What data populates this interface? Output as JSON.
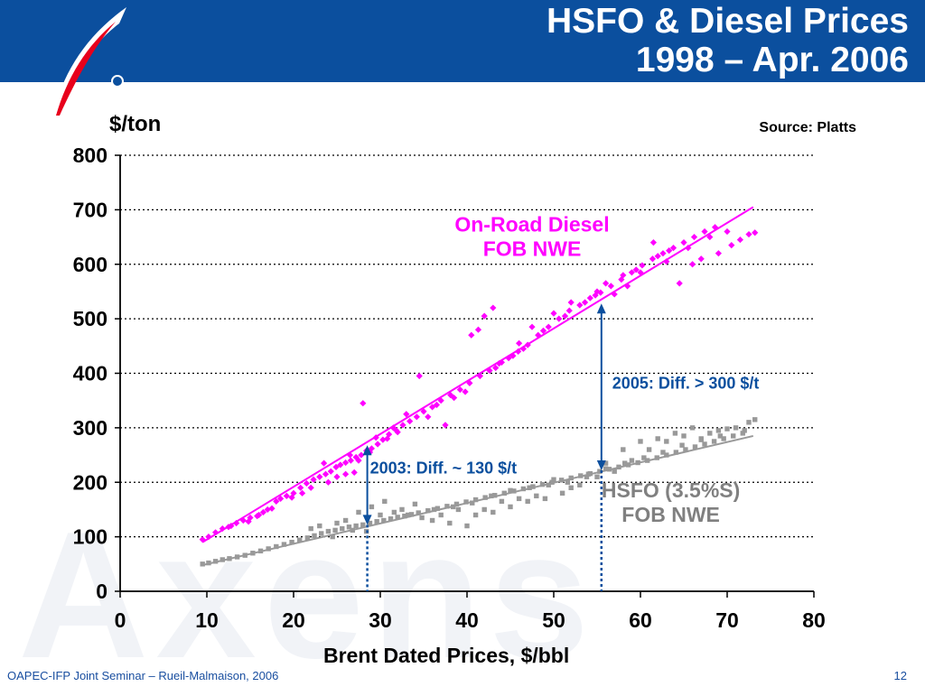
{
  "title": {
    "line1": "HSFO & Diesel Prices",
    "line2": "1998 – Apr. 2006"
  },
  "colors": {
    "header": "#0b4f9e",
    "diesel": "#ff00ff",
    "hsfo": "#999999",
    "annotation": "#0b4f9e",
    "footer": "#1a4fa0"
  },
  "watermark": "Axens",
  "footer": {
    "left": "OAPEC-IFP Joint Seminar – Rueil-Malmaison, 2006",
    "page": "12"
  },
  "chart_data": {
    "type": "scatter",
    "ylabel": "$/ton",
    "xlabel": "Brent Dated Prices, $/bbl",
    "source": "Source: Platts",
    "xlim": [
      0,
      80
    ],
    "ylim": [
      0,
      800
    ],
    "xticks": [
      0,
      10,
      20,
      30,
      40,
      50,
      60,
      70,
      80
    ],
    "yticks": [
      0,
      100,
      200,
      300,
      400,
      500,
      600,
      700,
      800
    ],
    "grid": "horizontal-dotted",
    "series": [
      {
        "name": "On-Road Diesel FOB NWE",
        "color": "#ff00ff",
        "marker": "diamond",
        "points": [
          [
            9.5,
            95
          ],
          [
            10.2,
            100
          ],
          [
            11,
            108
          ],
          [
            11.8,
            115
          ],
          [
            12.5,
            118
          ],
          [
            13.4,
            125
          ],
          [
            14.2,
            130
          ],
          [
            15,
            135
          ],
          [
            15.8,
            138
          ],
          [
            16.5,
            145
          ],
          [
            17.5,
            152
          ],
          [
            18.5,
            170
          ],
          [
            19.2,
            175
          ],
          [
            20,
            180
          ],
          [
            20.8,
            190
          ],
          [
            21.5,
            198
          ],
          [
            22.3,
            205
          ],
          [
            23,
            210
          ],
          [
            23.7,
            215
          ],
          [
            24.3,
            220
          ],
          [
            24.9,
            228
          ],
          [
            25.4,
            232
          ],
          [
            26,
            236
          ],
          [
            26.6,
            240
          ],
          [
            27.2,
            246
          ],
          [
            27.8,
            250
          ],
          [
            28.4,
            258
          ],
          [
            29,
            262
          ],
          [
            29.7,
            270
          ],
          [
            30.3,
            278
          ],
          [
            31,
            288
          ],
          [
            31.8,
            296
          ],
          [
            32.6,
            305
          ],
          [
            33.4,
            312
          ],
          [
            34.2,
            320
          ],
          [
            35,
            330
          ],
          [
            36,
            338
          ],
          [
            37,
            350
          ],
          [
            38.1,
            360
          ],
          [
            39.2,
            370
          ],
          [
            40.3,
            382
          ],
          [
            41.5,
            395
          ],
          [
            42.6,
            405
          ],
          [
            43.7,
            418
          ],
          [
            44.8,
            428
          ],
          [
            45.9,
            440
          ],
          [
            47,
            452
          ],
          [
            48.2,
            470
          ],
          [
            49.4,
            485
          ],
          [
            50.6,
            500
          ],
          [
            51.8,
            515
          ],
          [
            53,
            525
          ],
          [
            54.2,
            538
          ],
          [
            55.4,
            548
          ],
          [
            56.6,
            560
          ],
          [
            57.8,
            572
          ],
          [
            59,
            585
          ],
          [
            60.2,
            598
          ],
          [
            61.4,
            610
          ],
          [
            62.6,
            620
          ],
          [
            63.8,
            630
          ],
          [
            65,
            640
          ],
          [
            66.2,
            650
          ],
          [
            67.4,
            660
          ],
          [
            68.6,
            668
          ],
          [
            72.5,
            655
          ],
          [
            73.2,
            658
          ],
          [
            28,
            345
          ],
          [
            34.5,
            395
          ],
          [
            37.5,
            305
          ],
          [
            40.5,
            470
          ],
          [
            41.3,
            480
          ],
          [
            42,
            505
          ],
          [
            43,
            520
          ],
          [
            46,
            455
          ],
          [
            47.5,
            485
          ],
          [
            50,
            510
          ],
          [
            52,
            530
          ],
          [
            55,
            550
          ],
          [
            57,
            545
          ],
          [
            58.5,
            560
          ],
          [
            60,
            585
          ],
          [
            61.5,
            640
          ],
          [
            63,
            605
          ],
          [
            64.5,
            565
          ],
          [
            66,
            600
          ],
          [
            67,
            610
          ],
          [
            69,
            620
          ],
          [
            70.5,
            635
          ],
          [
            71.5,
            645
          ],
          [
            18,
            165
          ],
          [
            21,
            180
          ],
          [
            22,
            190
          ],
          [
            24,
            200
          ],
          [
            25,
            210
          ],
          [
            26,
            215
          ],
          [
            27,
            218
          ],
          [
            23.5,
            235
          ],
          [
            26.5,
            250
          ],
          [
            29.5,
            282
          ],
          [
            31.5,
            300
          ],
          [
            33,
            325
          ],
          [
            35.5,
            320
          ],
          [
            38.5,
            355
          ],
          [
            39.8,
            366
          ],
          [
            44,
            420
          ],
          [
            45.3,
            432
          ],
          [
            48.8,
            478
          ],
          [
            53.6,
            530
          ],
          [
            56,
            565
          ],
          [
            58,
            580
          ],
          [
            62,
            615
          ],
          [
            65.5,
            630
          ],
          [
            68,
            650
          ],
          [
            12.8,
            120
          ],
          [
            14.8,
            128
          ],
          [
            16,
            140
          ],
          [
            17,
            150
          ],
          [
            19.8,
            172
          ],
          [
            27.5,
            240
          ],
          [
            28.8,
            255
          ],
          [
            30.8,
            280
          ],
          [
            32,
            292
          ],
          [
            36.5,
            342
          ],
          [
            43.3,
            410
          ],
          [
            46.5,
            445
          ],
          [
            51.3,
            505
          ],
          [
            54.8,
            543
          ],
          [
            59.5,
            590
          ],
          [
            63.3,
            625
          ],
          [
            70,
            660
          ]
        ]
      },
      {
        "name": "HSFO (3.5%S) FOB NWE",
        "color": "#999999",
        "marker": "square",
        "points": [
          [
            9.5,
            50
          ],
          [
            10.2,
            52
          ],
          [
            11,
            55
          ],
          [
            11.8,
            58
          ],
          [
            12.6,
            60
          ],
          [
            13.5,
            63
          ],
          [
            14.4,
            66
          ],
          [
            15.3,
            70
          ],
          [
            16.2,
            74
          ],
          [
            17.1,
            78
          ],
          [
            18,
            82
          ],
          [
            18.9,
            86
          ],
          [
            19.8,
            90
          ],
          [
            20.7,
            94
          ],
          [
            21.6,
            98
          ],
          [
            22.4,
            102
          ],
          [
            23.2,
            106
          ],
          [
            24,
            110
          ],
          [
            24.8,
            112
          ],
          [
            25.6,
            115
          ],
          [
            26.4,
            118
          ],
          [
            27.2,
            120
          ],
          [
            28,
            122
          ],
          [
            28.8,
            125
          ],
          [
            29.6,
            128
          ],
          [
            30.4,
            130
          ],
          [
            31.2,
            133
          ],
          [
            32,
            136
          ],
          [
            32.8,
            138
          ],
          [
            33.6,
            141
          ],
          [
            34.4,
            144
          ],
          [
            35.5,
            148
          ],
          [
            36.6,
            152
          ],
          [
            37.7,
            156
          ],
          [
            38.8,
            160
          ],
          [
            39.9,
            164
          ],
          [
            41,
            168
          ],
          [
            42.1,
            172
          ],
          [
            43.2,
            176
          ],
          [
            44.3,
            180
          ],
          [
            45.4,
            184
          ],
          [
            46.5,
            188
          ],
          [
            47.6,
            192
          ],
          [
            48.7,
            196
          ],
          [
            49.8,
            200
          ],
          [
            50.9,
            204
          ],
          [
            52,
            208
          ],
          [
            53.1,
            212
          ],
          [
            54.2,
            216
          ],
          [
            55.3,
            220
          ],
          [
            56.4,
            224
          ],
          [
            57.5,
            228
          ],
          [
            58.6,
            232
          ],
          [
            59.7,
            236
          ],
          [
            60.8,
            240
          ],
          [
            61.9,
            245
          ],
          [
            63,
            250
          ],
          [
            64.1,
            255
          ],
          [
            65.2,
            260
          ],
          [
            66.3,
            265
          ],
          [
            67.4,
            270
          ],
          [
            68.5,
            275
          ],
          [
            69.6,
            280
          ],
          [
            70.7,
            285
          ],
          [
            71.8,
            290
          ],
          [
            72.5,
            310
          ],
          [
            73.2,
            315
          ],
          [
            24.5,
            100
          ],
          [
            26,
            130
          ],
          [
            27.5,
            145
          ],
          [
            29,
            155
          ],
          [
            30.5,
            165
          ],
          [
            32.5,
            150
          ],
          [
            34,
            160
          ],
          [
            36,
            130
          ],
          [
            38,
            125
          ],
          [
            40,
            120
          ],
          [
            42,
            150
          ],
          [
            44,
            165
          ],
          [
            46,
            170
          ],
          [
            48,
            175
          ],
          [
            50,
            205
          ],
          [
            52,
            190
          ],
          [
            54,
            215
          ],
          [
            56,
            235
          ],
          [
            58,
            260
          ],
          [
            60,
            275
          ],
          [
            62,
            280
          ],
          [
            64,
            290
          ],
          [
            66,
            300
          ],
          [
            68,
            290
          ],
          [
            70,
            298
          ],
          [
            71,
            300
          ],
          [
            72,
            295
          ],
          [
            37,
            140
          ],
          [
            39,
            150
          ],
          [
            41,
            140
          ],
          [
            43,
            145
          ],
          [
            45,
            155
          ],
          [
            47,
            165
          ],
          [
            49,
            170
          ],
          [
            51,
            180
          ],
          [
            53,
            195
          ],
          [
            55,
            210
          ],
          [
            57,
            220
          ],
          [
            59,
            240
          ],
          [
            61,
            260
          ],
          [
            63,
            275
          ],
          [
            65,
            285
          ],
          [
            67,
            280
          ],
          [
            69,
            295
          ],
          [
            22,
            115
          ],
          [
            23,
            120
          ],
          [
            25,
            125
          ],
          [
            26.8,
            112
          ],
          [
            28.4,
            110
          ],
          [
            30,
            140
          ],
          [
            31.6,
            145
          ],
          [
            33.2,
            140
          ],
          [
            34.8,
            135
          ],
          [
            36.2,
            150
          ],
          [
            38.4,
            155
          ],
          [
            40.6,
            162
          ],
          [
            42.8,
            175
          ],
          [
            45,
            185
          ],
          [
            47.2,
            190
          ],
          [
            49.4,
            195
          ],
          [
            51.6,
            200
          ],
          [
            53.8,
            210
          ],
          [
            56,
            225
          ],
          [
            58.2,
            235
          ],
          [
            60.4,
            245
          ],
          [
            62.6,
            255
          ],
          [
            64.8,
            268
          ],
          [
            67,
            278
          ],
          [
            69.2,
            285
          ]
        ]
      }
    ],
    "trendlines": [
      {
        "series": "On-Road Diesel FOB NWE",
        "color": "#ff00ff",
        "from": [
          9.5,
          90
        ],
        "to": [
          73,
          705
        ]
      },
      {
        "series": "HSFO (3.5%S) FOB NWE",
        "color": "#999999",
        "from": [
          9.5,
          48
        ],
        "to": [
          73,
          285
        ]
      }
    ],
    "annotations": [
      {
        "text": "2003: Diff. ~ 130 $/t",
        "x": 28.5,
        "y_low": 122,
        "y_high": 268,
        "color": "#0b4f9e"
      },
      {
        "text": "2005: Diff. > 300 $/t",
        "x": 55.5,
        "y_low": 222,
        "y_high": 528,
        "color": "#0b4f9e"
      }
    ],
    "series_labels": [
      {
        "lines": [
          "On-Road Diesel",
          "FOB NWE"
        ],
        "color": "#ff00ff"
      },
      {
        "lines": [
          "HSFO (3.5%S)",
          "FOB NWE"
        ],
        "color": "#808080"
      }
    ]
  }
}
